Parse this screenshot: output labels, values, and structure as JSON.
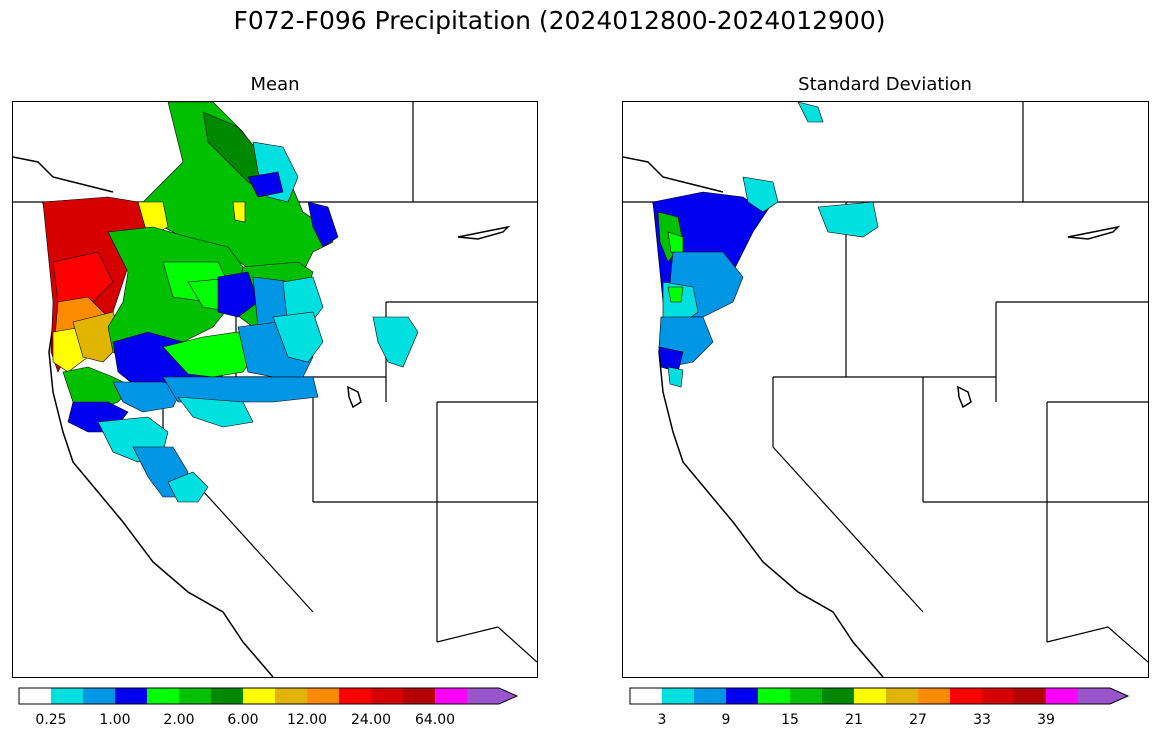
{
  "figure": {
    "title": "F072-F096 Precipitation (2024012800-2024012900)"
  },
  "panels": [
    {
      "id": "mean",
      "title": "Mean",
      "colorbar": {
        "colors": [
          "#ffffff",
          "#00e0e0",
          "#0096e6",
          "#0000f0",
          "#00ff00",
          "#00c000",
          "#008800",
          "#ffff00",
          "#e0b400",
          "#ff8c00",
          "#ff0000",
          "#d60000",
          "#b40000",
          "#ff00ff",
          "#9955cc"
        ],
        "tick_labels": [
          "0.25",
          "1.00",
          "2.00",
          "6.00",
          "12.00",
          "24.00",
          "64.00"
        ],
        "tick_after_bin": [
          1,
          3,
          5,
          7,
          9,
          11,
          13
        ],
        "extend": "max"
      }
    },
    {
      "id": "stddev",
      "title": "Standard Deviation",
      "colorbar": {
        "colors": [
          "#ffffff",
          "#00e0e0",
          "#0096e6",
          "#0000f0",
          "#00ff00",
          "#00c000",
          "#008800",
          "#ffff00",
          "#e0b400",
          "#ff8c00",
          "#ff0000",
          "#d60000",
          "#b40000",
          "#ff00ff",
          "#9955cc"
        ],
        "tick_labels": [
          "3",
          "9",
          "15",
          "21",
          "27",
          "33",
          "39"
        ],
        "tick_after_bin": [
          1,
          3,
          5,
          7,
          9,
          11,
          13
        ],
        "extend": "max"
      }
    }
  ]
}
